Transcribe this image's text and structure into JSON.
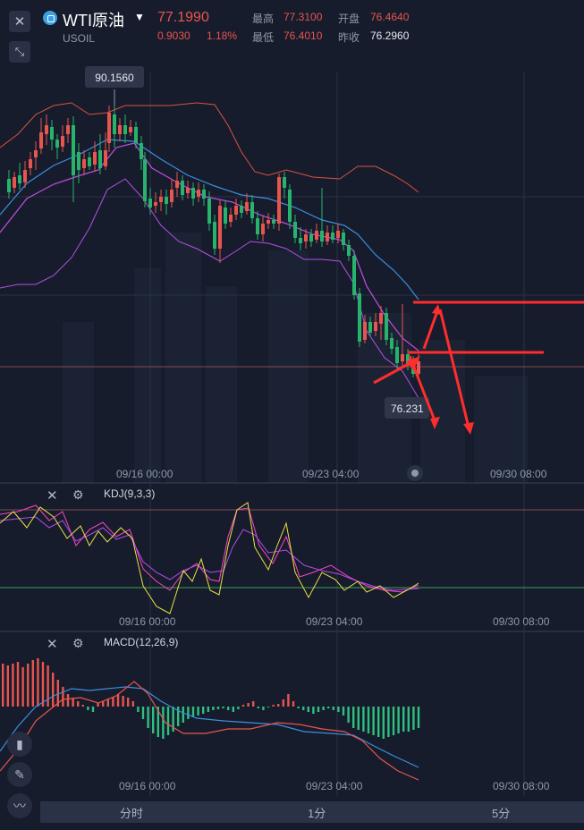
{
  "header": {
    "symbol": "WTI原油",
    "code": "USOIL",
    "price": "77.1990",
    "change": "0.9030",
    "change_pct": "1.18%",
    "high_label": "最高",
    "high": "77.3100",
    "low_label": "最低",
    "low": "76.4010",
    "open_label": "开盘",
    "open": "76.4640",
    "prev_label": "昨收",
    "prev": "76.2960"
  },
  "colors": {
    "up": "#e8554e",
    "down": "#27b36c",
    "annotation": "#ff2d2d"
  },
  "chart_data": [
    {
      "type": "candlestick",
      "high_marker": "90.1560",
      "low_marker": "76.231",
      "x_ticks": [
        "09/16 00:00",
        "09/23 04:00",
        "09/30 08:00"
      ],
      "approx_close": [
        84.5,
        86.5,
        87.2,
        85.4,
        88.1,
        90.1,
        88.3,
        86.1,
        83.2,
        82.0,
        81.6,
        81.1,
        82.4,
        80.2,
        79.8,
        80.6,
        81.5,
        82.6,
        83.4,
        81.7,
        80.0,
        79.3,
        78.5,
        77.9,
        76.8,
        76.2,
        77.2
      ]
    },
    {
      "type": "line",
      "title": "KDJ(9,3,3)",
      "x_ticks": [
        "09/16 00:00",
        "09/23 04:00",
        "09/30 08:00"
      ]
    },
    {
      "type": "bar",
      "title": "MACD(12,26,9)",
      "x_ticks": [
        "09/16 00:00",
        "09/23 04:00",
        "09/30 08:00"
      ]
    }
  ],
  "tabs": [
    "分时",
    "1分",
    "5分"
  ]
}
